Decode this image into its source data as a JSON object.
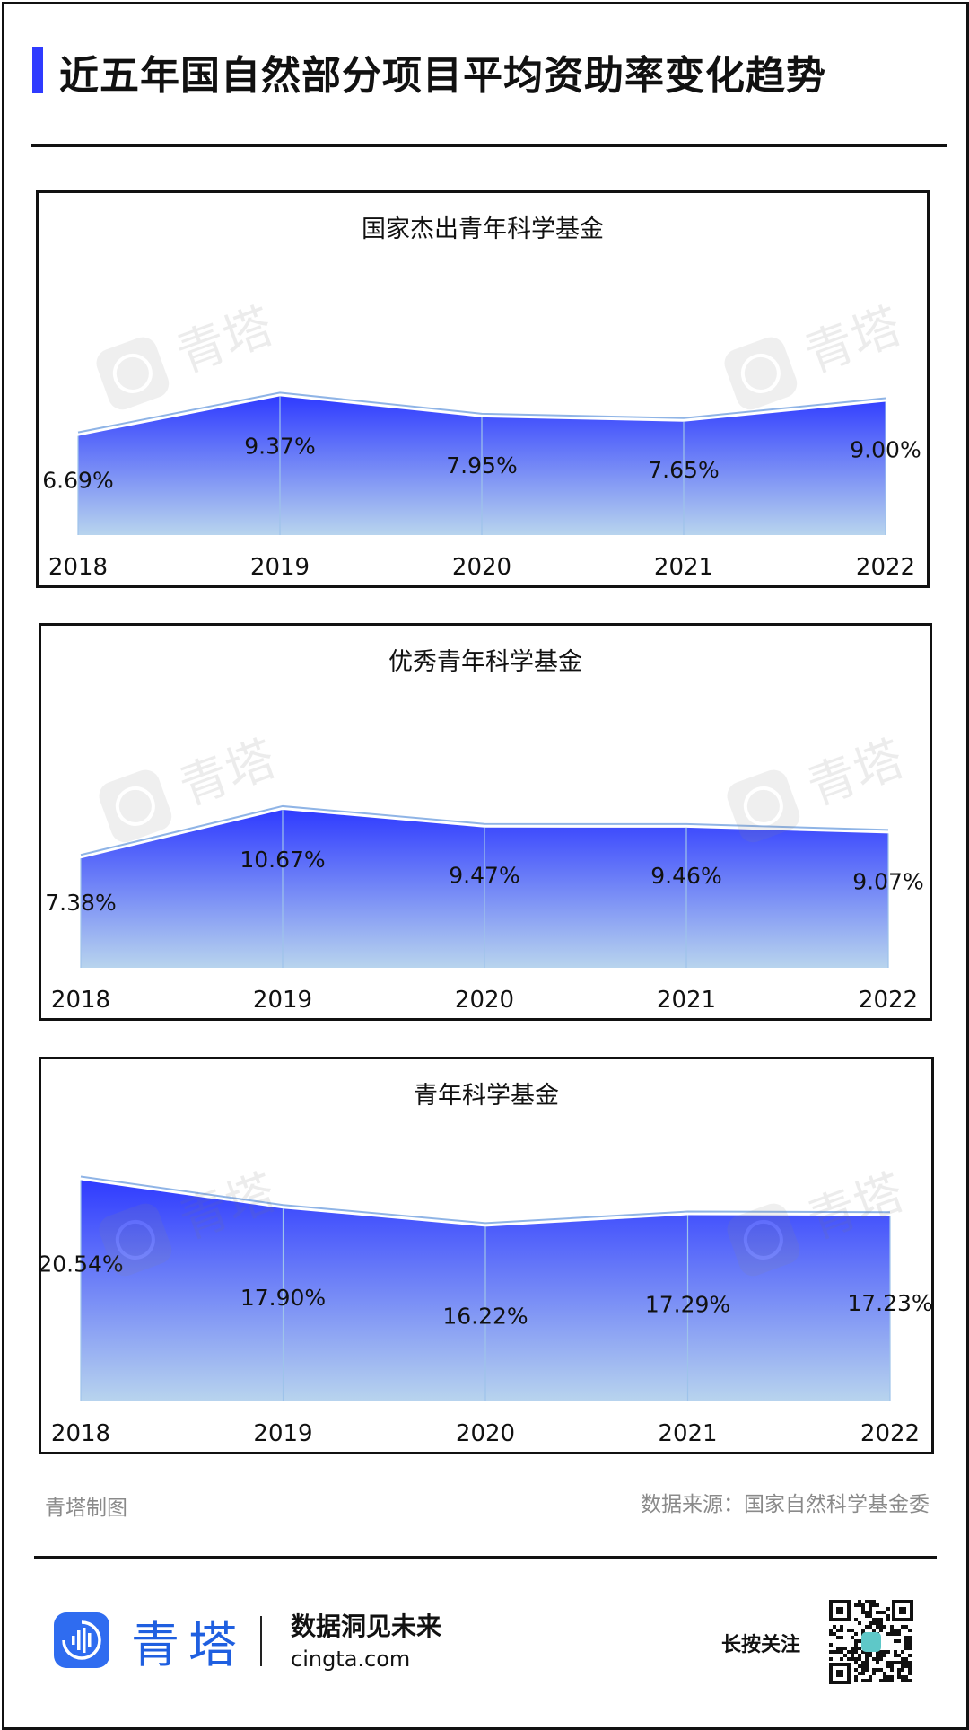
{
  "header": {
    "title": "近五年国自然部分项目平均资助率变化趋势"
  },
  "watermark": "青塔",
  "chart_data": [
    {
      "type": "area",
      "title": "国家杰出青年科学基金",
      "categories": [
        "2018",
        "2019",
        "2020",
        "2021",
        "2022"
      ],
      "values": [
        6.69,
        9.37,
        7.95,
        7.65,
        9.0
      ],
      "labels": [
        "6.69%",
        "9.37%",
        "7.95%",
        "7.65%",
        "9.00%"
      ],
      "ylim": [
        0,
        20
      ],
      "grid": false
    },
    {
      "type": "area",
      "title": "优秀青年科学基金",
      "categories": [
        "2018",
        "2019",
        "2020",
        "2021",
        "2022"
      ],
      "values": [
        7.38,
        10.67,
        9.47,
        9.46,
        9.07
      ],
      "labels": [
        "7.38%",
        "10.67%",
        "9.47%",
        "9.46%",
        "9.07%"
      ],
      "ylim": [
        0,
        20
      ],
      "grid": false
    },
    {
      "type": "area",
      "title": "青年科学基金",
      "categories": [
        "2018",
        "2019",
        "2020",
        "2021",
        "2022"
      ],
      "values": [
        20.54,
        17.9,
        16.22,
        17.29,
        17.23
      ],
      "labels": [
        "20.54%",
        "17.90%",
        "16.22%",
        "17.29%",
        "17.23%"
      ],
      "ylim": [
        0,
        22
      ],
      "grid": false
    }
  ],
  "footer": {
    "credit": "青塔制图",
    "source": "数据来源：国家自然科学基金委",
    "brand": "青塔",
    "slogan": "数据洞见未来",
    "site": "cingta.com",
    "follow": "长按关注"
  },
  "colors": {
    "accent": "#2f3bff",
    "area_top": "#2f3bff",
    "area_bottom": "#b8d4ee",
    "brand": "#1f5fe0"
  },
  "icons": {
    "logo": "sound-wave-icon",
    "qr": "qr-code-icon"
  }
}
